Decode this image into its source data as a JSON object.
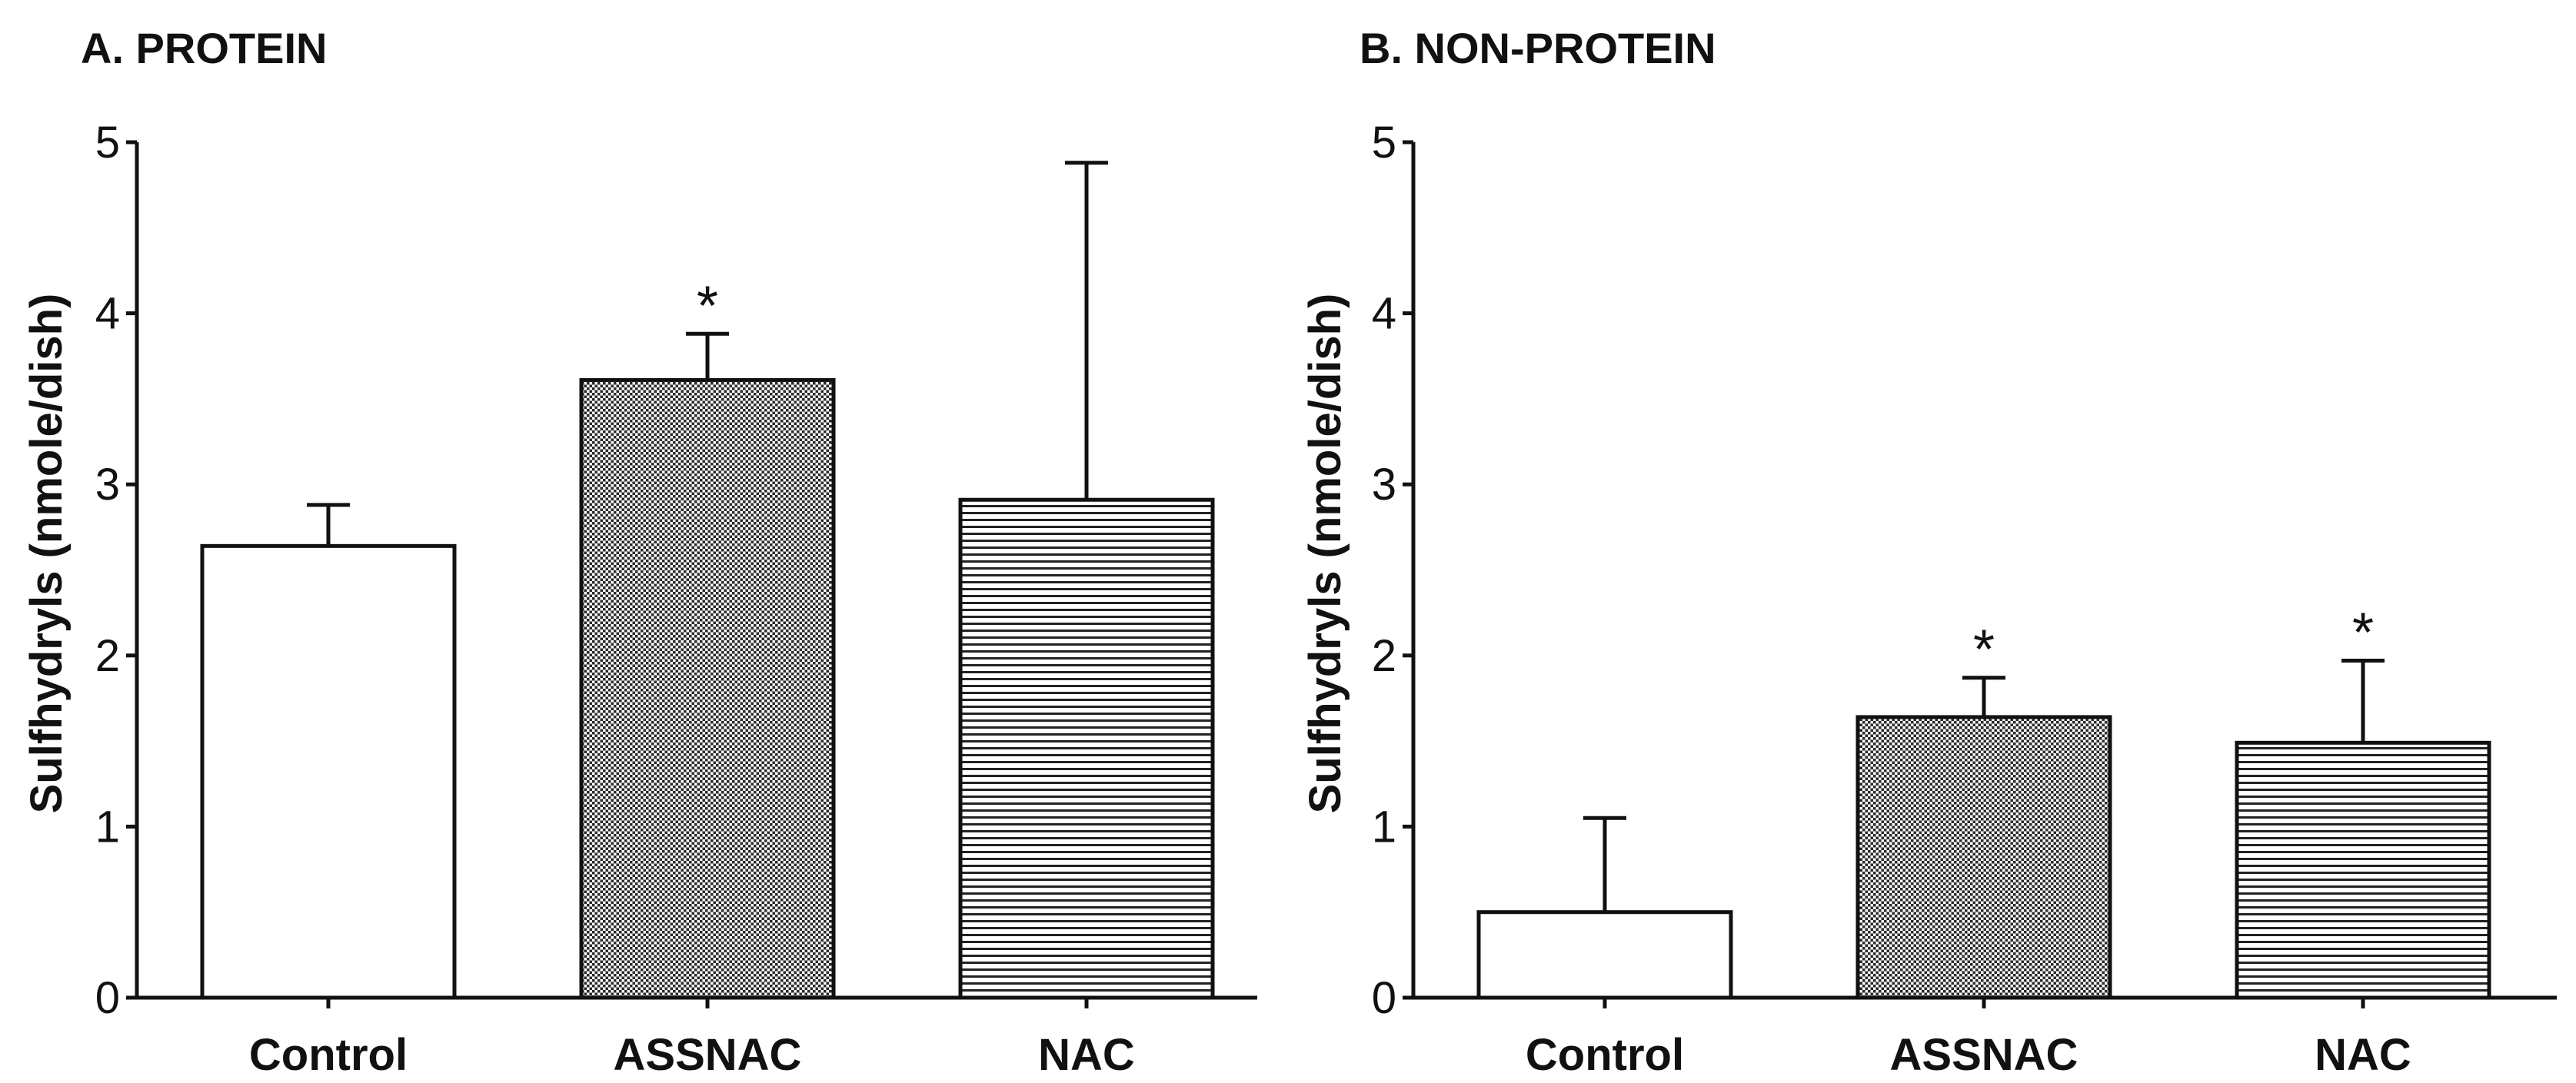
{
  "chart_data": [
    {
      "type": "bar",
      "title": "A. PROTEIN",
      "ylabel": "Sulfhydryls (nmole/dish)",
      "xlabel": "",
      "ylim": [
        0,
        5
      ],
      "yticks": [
        "0",
        "1",
        "2",
        "3",
        "4",
        "5"
      ],
      "categories": [
        "Control",
        "ASSNAC",
        "NAC"
      ],
      "values": [
        2.64,
        3.61,
        2.91
      ],
      "errors": [
        0.24,
        0.27,
        1.97
      ],
      "patterns": [
        "none",
        "dots",
        "hlines"
      ],
      "significance": [
        "",
        "*",
        ""
      ]
    },
    {
      "type": "bar",
      "title": "B. NON-PROTEIN",
      "ylabel": "Sulfhydryls (nmole/dish)",
      "xlabel": "",
      "ylim": [
        0,
        5
      ],
      "yticks": [
        "0",
        "1",
        "2",
        "3",
        "4",
        "5"
      ],
      "categories": [
        "Control",
        "ASSNAC",
        "NAC"
      ],
      "values": [
        0.5,
        1.64,
        1.49
      ],
      "errors": [
        0.55,
        0.23,
        0.48
      ],
      "patterns": [
        "none",
        "dots",
        "hlines"
      ],
      "significance": [
        "",
        "*",
        "*"
      ]
    }
  ]
}
